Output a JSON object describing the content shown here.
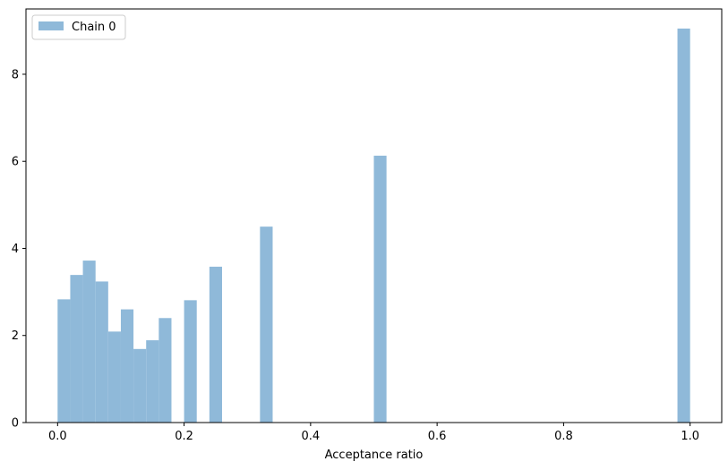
{
  "chart_data": {
    "type": "bar",
    "subtype": "histogram",
    "title": "",
    "xlabel": "Acceptance ratio",
    "ylabel": "",
    "xlim": [
      -0.05,
      1.05
    ],
    "ylim": [
      0,
      9.5
    ],
    "xticks": [
      0.0,
      0.2,
      0.4,
      0.6,
      0.8,
      1.0
    ],
    "xtick_labels": [
      "0.0",
      "0.2",
      "0.4",
      "0.6",
      "0.8",
      "1.0"
    ],
    "yticks": [
      0,
      2,
      4,
      6,
      8
    ],
    "ytick_labels": [
      "0",
      "2",
      "4",
      "6",
      "8"
    ],
    "grid": false,
    "legend": {
      "position": "top-left"
    },
    "bin_width": 0.02,
    "series": [
      {
        "name": "Chain 0",
        "color": "#8fb9d9",
        "bins": [
          {
            "x0": 0.0,
            "x1": 0.02,
            "value": 2.83
          },
          {
            "x0": 0.02,
            "x1": 0.04,
            "value": 3.39
          },
          {
            "x0": 0.04,
            "x1": 0.06,
            "value": 3.72
          },
          {
            "x0": 0.06,
            "x1": 0.08,
            "value": 3.24
          },
          {
            "x0": 0.08,
            "x1": 0.1,
            "value": 2.09
          },
          {
            "x0": 0.1,
            "x1": 0.12,
            "value": 2.6
          },
          {
            "x0": 0.12,
            "x1": 0.14,
            "value": 1.69
          },
          {
            "x0": 0.14,
            "x1": 0.16,
            "value": 1.89
          },
          {
            "x0": 0.16,
            "x1": 0.18,
            "value": 2.4
          },
          {
            "x0": 0.2,
            "x1": 0.22,
            "value": 2.81
          },
          {
            "x0": 0.24,
            "x1": 0.26,
            "value": 3.58
          },
          {
            "x0": 0.32,
            "x1": 0.34,
            "value": 4.5
          },
          {
            "x0": 0.5,
            "x1": 0.52,
            "value": 6.13
          },
          {
            "x0": 0.98,
            "x1": 1.0,
            "value": 9.05
          }
        ]
      }
    ]
  }
}
